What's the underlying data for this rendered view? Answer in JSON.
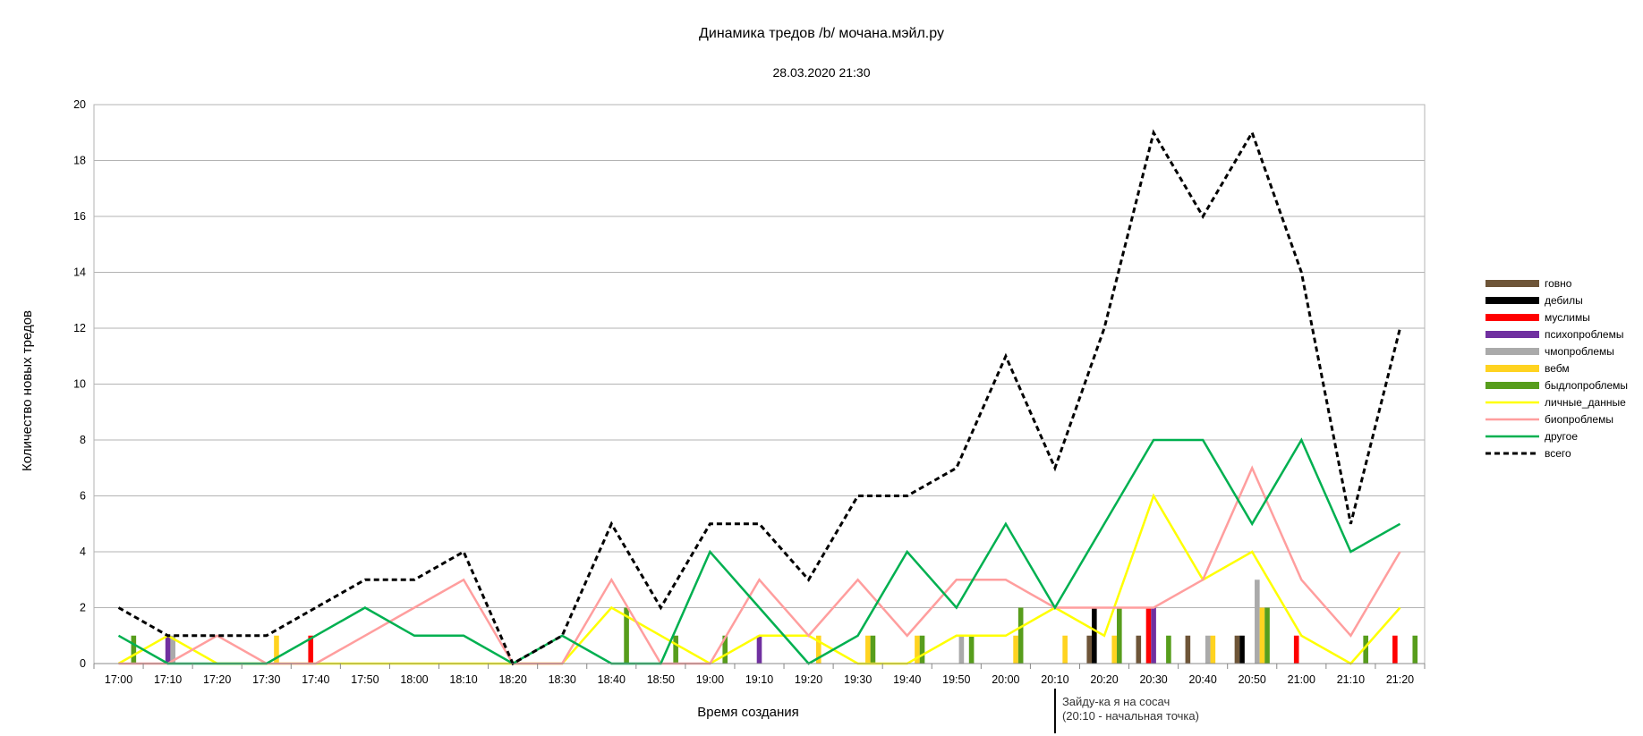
{
  "chart_data": {
    "type": "bar",
    "title": "Динамика тредов /b/ мочана.мэйл.ру",
    "subtitle": "28.03.2020 21:30",
    "xlabel": "Время создания",
    "ylabel": "Количество новых тредов",
    "ylim": [
      0,
      20
    ],
    "yticks": [
      0,
      2,
      4,
      6,
      8,
      10,
      12,
      14,
      16,
      18,
      20
    ],
    "grid": true,
    "legend_position": "right",
    "categories": [
      "17:00",
      "17:10",
      "17:20",
      "17:30",
      "17:40",
      "17:50",
      "18:00",
      "18:10",
      "18:20",
      "18:30",
      "18:40",
      "18:50",
      "19:00",
      "19:10",
      "19:20",
      "19:30",
      "19:40",
      "19:50",
      "20:00",
      "20:10",
      "20:20",
      "20:30",
      "20:40",
      "20:50",
      "21:00",
      "21:10",
      "21:20"
    ],
    "bar_series": [
      {
        "name": "говно",
        "color": "#6e5538",
        "values": [
          0,
          0,
          0,
          0,
          0,
          0,
          0,
          0,
          0,
          0,
          0,
          0,
          0,
          0,
          0,
          0,
          0,
          0,
          0,
          0,
          1,
          1,
          1,
          1,
          0,
          0,
          0
        ]
      },
      {
        "name": "дебилы",
        "color": "#000000",
        "values": [
          0,
          0,
          0,
          0,
          0,
          0,
          0,
          0,
          0,
          0,
          0,
          0,
          0,
          0,
          0,
          0,
          0,
          0,
          0,
          0,
          2,
          0,
          0,
          1,
          0,
          0,
          0
        ]
      },
      {
        "name": "муслимы",
        "color": "#ff0000",
        "values": [
          0,
          0,
          0,
          0,
          1,
          0,
          0,
          0,
          0,
          0,
          0,
          0,
          0,
          0,
          0,
          0,
          0,
          0,
          0,
          0,
          0,
          2,
          0,
          0,
          1,
          0,
          1
        ]
      },
      {
        "name": "психопроблемы",
        "color": "#7030a0",
        "values": [
          0,
          1,
          0,
          0,
          0,
          0,
          0,
          0,
          0,
          0,
          0,
          0,
          0,
          1,
          0,
          0,
          0,
          0,
          0,
          0,
          0,
          2,
          0,
          0,
          0,
          0,
          0
        ]
      },
      {
        "name": "чмопроблемы",
        "color": "#aaaaaa",
        "values": [
          0,
          1,
          0,
          0,
          0,
          0,
          0,
          0,
          0,
          0,
          0,
          0,
          0,
          0,
          0,
          0,
          0,
          1,
          0,
          0,
          0,
          0,
          1,
          3,
          0,
          0,
          0
        ]
      },
      {
        "name": "вебм",
        "color": "#ffd320",
        "values": [
          0,
          0,
          0,
          1,
          0,
          0,
          0,
          0,
          0,
          0,
          0,
          0,
          0,
          0,
          1,
          1,
          1,
          0,
          1,
          1,
          1,
          0,
          1,
          2,
          0,
          0,
          0
        ]
      },
      {
        "name": "быдлопроблемы",
        "color": "#579d1c",
        "values": [
          1,
          0,
          0,
          0,
          0,
          0,
          0,
          0,
          0,
          0,
          2,
          1,
          1,
          0,
          0,
          1,
          1,
          1,
          2,
          0,
          2,
          1,
          0,
          2,
          0,
          1,
          1
        ]
      }
    ],
    "line_series": [
      {
        "name": "личные_данные",
        "color": "#ffff00",
        "style": "solid",
        "values": [
          0,
          1,
          0,
          0,
          0,
          0,
          0,
          0,
          0,
          0,
          2,
          1,
          0,
          1,
          1,
          0,
          0,
          1,
          1,
          2,
          1,
          6,
          3,
          4,
          1,
          0,
          2
        ]
      },
      {
        "name": "биопроблемы",
        "color": "#ff9e9e",
        "style": "solid",
        "values": [
          0,
          0,
          1,
          0,
          0,
          1,
          2,
          3,
          0,
          0,
          3,
          0,
          0,
          3,
          1,
          3,
          1,
          3,
          3,
          2,
          2,
          2,
          3,
          7,
          3,
          1,
          4
        ]
      },
      {
        "name": "другое",
        "color": "#00b050",
        "style": "solid",
        "values": [
          1,
          0,
          0,
          0,
          1,
          2,
          1,
          1,
          0,
          1,
          0,
          0,
          4,
          2,
          0,
          1,
          4,
          2,
          5,
          2,
          5,
          8,
          8,
          5,
          8,
          4,
          5
        ]
      },
      {
        "name": "всего",
        "color": "#000000",
        "style": "dashed",
        "values": [
          2,
          1,
          1,
          1,
          2,
          3,
          3,
          4,
          0,
          1,
          5,
          2,
          5,
          5,
          3,
          6,
          6,
          7,
          11,
          7,
          12,
          19,
          16,
          19,
          14,
          5,
          12
        ]
      }
    ],
    "annotation": {
      "line1": "Зайду-ка я на сосач",
      "line2": "(20:10 - начальная точка)",
      "at_category": "20:10"
    }
  }
}
